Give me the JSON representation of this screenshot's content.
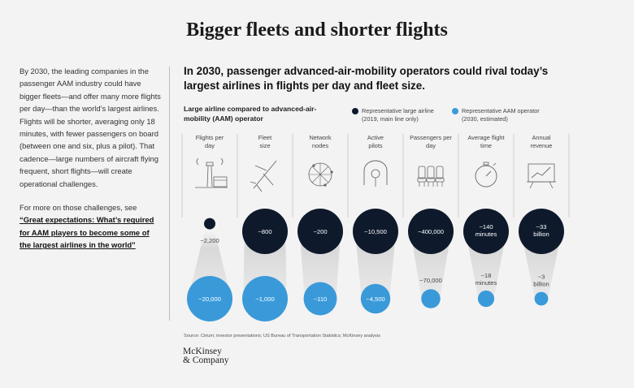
{
  "title": "Bigger fleets and shorter flights",
  "left": {
    "paragraph": "By 2030, the leading companies in the passenger AAM industry could have bigger fleets—and offer many more flights per day—than the world’s largest airlines. Flights will be shorter, averaging only 18 minutes, with fewer passengers on board (between one and six, plus a pilot). That cadence—large numbers of aircraft flying frequent, short flights—will create operational challenges.",
    "more_prefix": "For more on those challenges, see ",
    "link": "“Great expectations: What’s required for AAM players to become some of the largest airlines in the world”"
  },
  "headline": "In 2030, passenger advanced-air-mobility operators could rival today’s largest airlines in flights per day and fleet size.",
  "subhead": "Large airline compared to advanced-air-mobility (AAM) operator",
  "legend": {
    "airline": "Representative large airline (2019, main line only)",
    "aam": "Representative AAM operator (2030, estimated)"
  },
  "colors": {
    "airline": "#0e1a2c",
    "aam": "#3a9ad9",
    "text_light": "#ffffff"
  },
  "chart_data": {
    "type": "bubble-comparison",
    "series": [
      {
        "name": "Representative large airline (2019, main line only)",
        "key": "airline"
      },
      {
        "name": "Representative AAM operator (2030, estimated)",
        "key": "aam"
      }
    ],
    "categories": [
      {
        "label": "Flights per day",
        "icon": "airport-tower-icon",
        "airline": "~2,200",
        "aam": "~20,000",
        "airline_rel": 0.25,
        "aam_rel": 1.0
      },
      {
        "label": "Fleet size",
        "icon": "airplane-icon",
        "airline": "~800",
        "aam": "~1,000",
        "airline_rel": 1.0,
        "aam_rel": 1.0
      },
      {
        "label": "Network nodes",
        "icon": "globe-network-icon",
        "airline": "~200",
        "aam": "~110",
        "airline_rel": 1.0,
        "aam_rel": 0.73
      },
      {
        "label": "Active pilots",
        "icon": "yoke-icon",
        "airline": "~10,500",
        "aam": "~4,500",
        "airline_rel": 1.0,
        "aam_rel": 0.65
      },
      {
        "label": "Passengers per day",
        "icon": "seats-icon",
        "airline": "~400,000",
        "aam": "~70,000",
        "airline_rel": 1.0,
        "aam_rel": 0.42
      },
      {
        "label": "Average flight time",
        "icon": "stopwatch-icon",
        "airline": "~140 minutes",
        "aam": "~18 minutes",
        "airline_rel": 1.0,
        "aam_rel": 0.36
      },
      {
        "label": "Annual revenue",
        "icon": "chart-board-icon",
        "airline": "~33 billion",
        "aam": "~3 billion",
        "airline_rel": 1.0,
        "aam_rel": 0.3
      }
    ]
  },
  "source": "Source: Cirium; investor presentations; US Bureau of Transportation Statistics; McKinsey analysis",
  "logo": [
    "McKinsey",
    "& Company"
  ]
}
